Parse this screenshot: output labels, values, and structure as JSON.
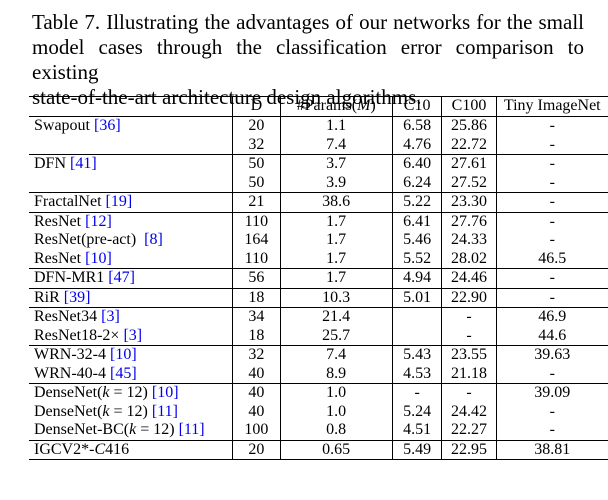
{
  "caption": {
    "line1": "Table 7. Illustrating the advantages of our networks for the small",
    "line2": "model cases through the classification error comparison to existing",
    "line3": "state-of-the-art architecture design algorithms."
  },
  "table": {
    "headers": {
      "method": "",
      "d": "D",
      "params_prefix": "#Params(",
      "params_var": "M",
      "params_suffix": ")",
      "c10": "C10",
      "c100": "C100",
      "tiny": "Tiny ImageNet"
    },
    "rows": [
      {
        "name": "Swapout ",
        "ref": "[36]",
        "d": "20",
        "params": "1.1",
        "c10": "6.58",
        "c100": "25.86",
        "tiny": "-"
      },
      {
        "name": "",
        "ref": "",
        "d": "32",
        "params": "7.4",
        "c10": "4.76",
        "c100": "22.72",
        "tiny": "-"
      },
      {
        "name": "DFN ",
        "ref": "[41]",
        "d": "50",
        "params": "3.7",
        "c10": "6.40",
        "c100": "27.61",
        "tiny": "-"
      },
      {
        "name": "",
        "ref": "",
        "d": "50",
        "params": "3.9",
        "c10": "6.24",
        "c100": "27.52",
        "tiny": "-"
      },
      {
        "name": "FractalNet ",
        "ref": "[19]",
        "d": "21",
        "params": "38.6",
        "c10": "5.22",
        "c100": "23.30",
        "tiny": "-"
      },
      {
        "name": "ResNet ",
        "ref": "[12]",
        "d": "110",
        "params": "1.7",
        "c10": "6.41",
        "c100": "27.76",
        "tiny": "-"
      },
      {
        "name": "ResNet(pre-act)  ",
        "ref": "[8]",
        "d": "164",
        "params": "1.7",
        "c10": "5.46",
        "c100": "24.33",
        "tiny": "-"
      },
      {
        "name": "ResNet ",
        "ref": "[10]",
        "d": "110",
        "params": "1.7",
        "c10": "5.52",
        "c100": "28.02",
        "tiny": "46.5"
      },
      {
        "name": "DFN-MR1 ",
        "ref": "[47]",
        "d": "56",
        "params": "1.7",
        "c10": "4.94",
        "c100": "24.46",
        "tiny": "-"
      },
      {
        "name": "RiR ",
        "ref": "[39]",
        "d": "18",
        "params": "10.3",
        "c10": "5.01",
        "c100": "22.90",
        "tiny": "-"
      },
      {
        "name": "ResNet34 ",
        "ref": "[3]",
        "d": "34",
        "params": "21.4",
        "c10": "",
        "c100": "-",
        "tiny": "46.9"
      },
      {
        "name": "ResNet18-2× ",
        "ref": "[3]",
        "d": "18",
        "params": "25.7",
        "c10": "",
        "c100": "-",
        "tiny": "44.6"
      },
      {
        "name": "WRN-32-4 ",
        "ref": "[10]",
        "d": "32",
        "params": "7.4",
        "c10": "5.43",
        "c100": "23.55",
        "tiny": "39.63"
      },
      {
        "name": "WRN-40-4 ",
        "ref": "[45]",
        "d": "40",
        "params": "8.9",
        "c10": "4.53",
        "c100": "21.18",
        "tiny": "-"
      },
      {
        "name_pre": "DenseNet(",
        "name_k": "k",
        "name_post": " = 12) ",
        "ref": "[10]",
        "d": "40",
        "params": "1.0",
        "c10": "-",
        "c100": "-",
        "tiny": "39.09"
      },
      {
        "name_pre": "DenseNet(",
        "name_k": "k",
        "name_post": " = 12) ",
        "ref": "[11]",
        "d": "40",
        "params": "1.0",
        "c10": "5.24",
        "c100": "24.42",
        "tiny": "-"
      },
      {
        "name_pre": "DenseNet-BC(",
        "name_k": "k",
        "name_post": " = 12) ",
        "ref": "[11]",
        "d": "100",
        "params": "0.8",
        "c10": "4.51",
        "c100": "22.27",
        "tiny": "-"
      },
      {
        "name_pre": "IGCV2*-",
        "name_k": "C",
        "name_post": "416",
        "ref": "",
        "d": "20",
        "params": "0.65",
        "c10": "5.49",
        "c100": "22.95",
        "tiny": "38.81"
      }
    ]
  }
}
